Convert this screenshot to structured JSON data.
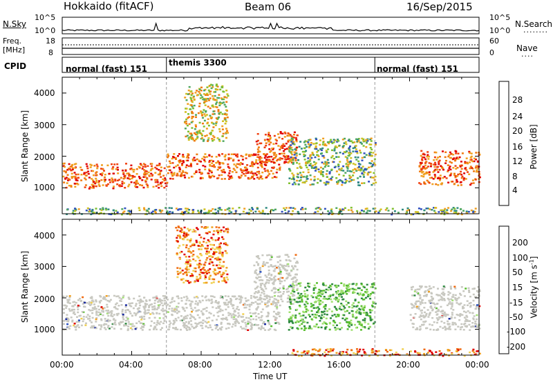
{
  "header": {
    "station": "Hokkaido (fitACF)",
    "beam": "Beam 06",
    "date": "16/Sep/2015"
  },
  "noise_panel": {
    "left_label": "N.Sky",
    "right_label": "N.Search",
    "left_ticks": [
      "10^5",
      "10^0"
    ],
    "right_ticks": [
      "10^5",
      "10^0"
    ]
  },
  "freq_panel": {
    "left_label_line1": "Freq.",
    "left_label_line2": "[MHz]",
    "left_ticks": [
      "18",
      "8"
    ],
    "right_label": "Nave",
    "right_ticks": [
      "60",
      "0"
    ]
  },
  "cpid_panel": {
    "label": "CPID",
    "segments": [
      {
        "name": "normal (fast) 151",
        "start_hour": 0,
        "end_hour": 6
      },
      {
        "name": "themis 3300",
        "start_hour": 6,
        "end_hour": 18
      },
      {
        "name": "normal (fast) 151",
        "start_hour": 18,
        "end_hour": 24
      }
    ]
  },
  "chart_data": [
    {
      "type": "heatmap",
      "title": "Power",
      "ylabel": "Slant Range [km]",
      "xlabel": "",
      "xlim": [
        0,
        24
      ],
      "ylim": [
        180,
        4500
      ],
      "yticks": [
        1000,
        2000,
        3000,
        4000
      ],
      "colorbar": {
        "label": "Power [dB]",
        "ticks": [
          "28",
          "24",
          "20",
          "16",
          "12",
          "8",
          "4"
        ],
        "colors": [
          "#1a1aff",
          "#3050c0",
          "#2e8a80",
          "#50a860",
          "#80c030",
          "#d0c020",
          "#f0a020",
          "#f07a10",
          "#f04010",
          "#e00000"
        ]
      },
      "regions": [
        {
          "x": [
            0,
            6
          ],
          "range": [
            1000,
            1800
          ],
          "level": "high"
        },
        {
          "x": [
            6,
            12.5
          ],
          "range": [
            1300,
            2100
          ],
          "level": "high"
        },
        {
          "x": [
            11,
            13.5
          ],
          "range": [
            1800,
            2800
          ],
          "level": "high"
        },
        {
          "x": [
            7,
            9.5
          ],
          "range": [
            2500,
            4300
          ],
          "level": "medium"
        },
        {
          "x": [
            13,
            18
          ],
          "range": [
            1100,
            2600
          ],
          "level": "low"
        },
        {
          "x": [
            20.5,
            24
          ],
          "range": [
            1100,
            2200
          ],
          "level": "high"
        },
        {
          "x": [
            0,
            24
          ],
          "range": [
            180,
            400
          ],
          "level": "low"
        }
      ]
    },
    {
      "type": "heatmap",
      "title": "Velocity",
      "ylabel": "Slant Range [km]",
      "xlabel": "Time UT",
      "xlim": [
        0,
        24
      ],
      "ylim": [
        180,
        4500
      ],
      "yticks": [
        1000,
        2000,
        3000,
        4000
      ],
      "xticks": [
        "00:00",
        "04:00",
        "08:00",
        "12:00",
        "16:00",
        "20:00",
        "00:00"
      ],
      "colorbar": {
        "label": "Velocity [m s^-1]",
        "ticks": [
          "200",
          "100",
          "50",
          "15",
          "-15",
          "-50",
          "-100",
          "-200"
        ],
        "colors": [
          "#1a2aa0",
          "#2a50c0",
          "#2e8a40",
          "#5abf30",
          "#a0e070",
          "#c8c8c0",
          "#f0d050",
          "#f0a020",
          "#f06a10",
          "#e00000"
        ]
      },
      "regions": [
        {
          "x": [
            0,
            12.5
          ],
          "range": [
            1000,
            2100
          ],
          "level": "ground-scatter"
        },
        {
          "x": [
            11,
            13.5
          ],
          "range": [
            1800,
            3400
          ],
          "level": "ground-scatter"
        },
        {
          "x": [
            13,
            18
          ],
          "range": [
            1000,
            2500
          ],
          "level": "positive"
        },
        {
          "x": [
            20,
            24
          ],
          "range": [
            1000,
            2400
          ],
          "level": "ground-scatter"
        },
        {
          "x": [
            6.5,
            9.5
          ],
          "range": [
            2500,
            4300
          ],
          "level": "negative"
        },
        {
          "x": [
            13,
            24
          ],
          "range": [
            180,
            400
          ],
          "level": "negative"
        }
      ]
    }
  ]
}
